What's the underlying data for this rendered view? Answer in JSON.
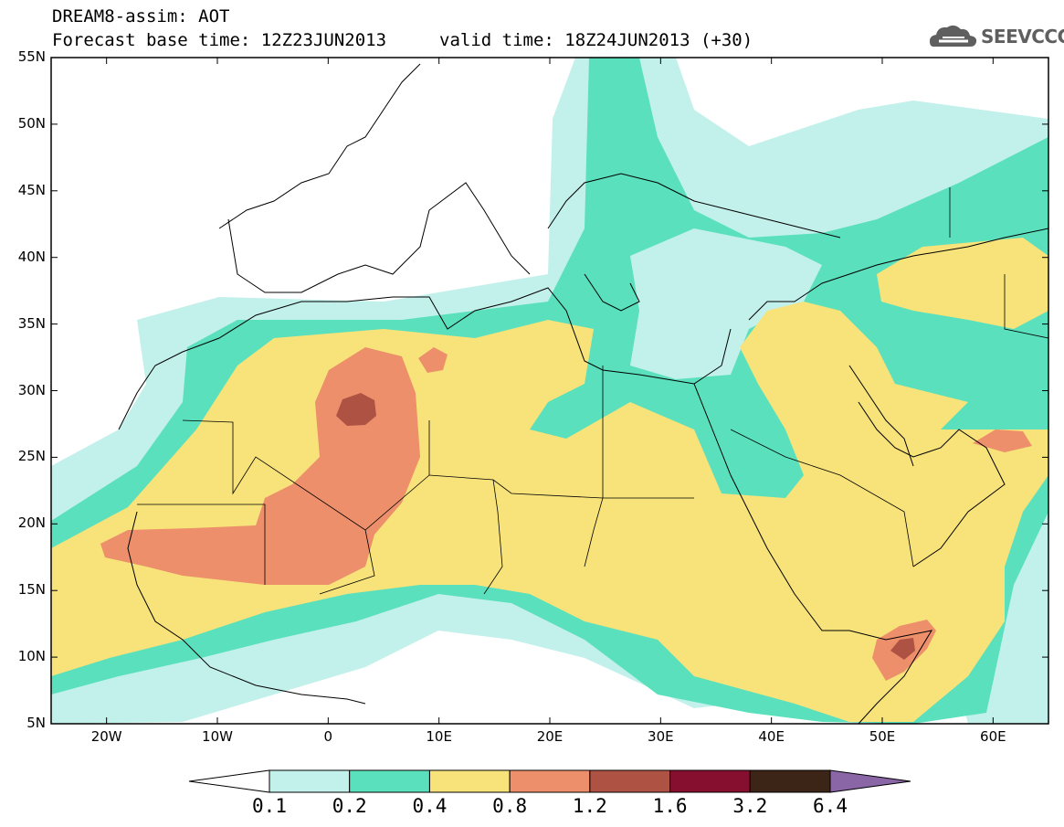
{
  "header": {
    "title_line1": "DREAM8-assim: AOT",
    "base_time": "Forecast base time: 12Z23JUN2013",
    "valid_time": "valid time: 18Z24JUN2013 (+30)"
  },
  "logo": {
    "text": "SEEVCCC",
    "icon": "cloud-logo-icon"
  },
  "map": {
    "lat_ticks": [
      "55N",
      "50N",
      "45N",
      "40N",
      "35N",
      "30N",
      "25N",
      "20N",
      "15N",
      "10N",
      "5N"
    ],
    "lon_ticks": [
      "20W",
      "10W",
      "0",
      "10E",
      "20E",
      "30E",
      "40E",
      "50E",
      "60E"
    ],
    "extent": {
      "lon": [
        -25,
        65
      ],
      "lat": [
        5,
        55
      ]
    },
    "colors": {
      "background": "#ffffff",
      "coastline": "#000000"
    }
  },
  "colorbar": {
    "levels": [
      "0.1",
      "0.2",
      "0.4",
      "0.8",
      "1.2",
      "1.6",
      "3.2",
      "6.4"
    ],
    "colors": [
      "#ffffff",
      "#c2f0eb",
      "#5ae0bd",
      "#f7e37a",
      "#ec8f6a",
      "#ae5244",
      "#860e2f",
      "#3c2417",
      "#8b66a6"
    ]
  }
}
